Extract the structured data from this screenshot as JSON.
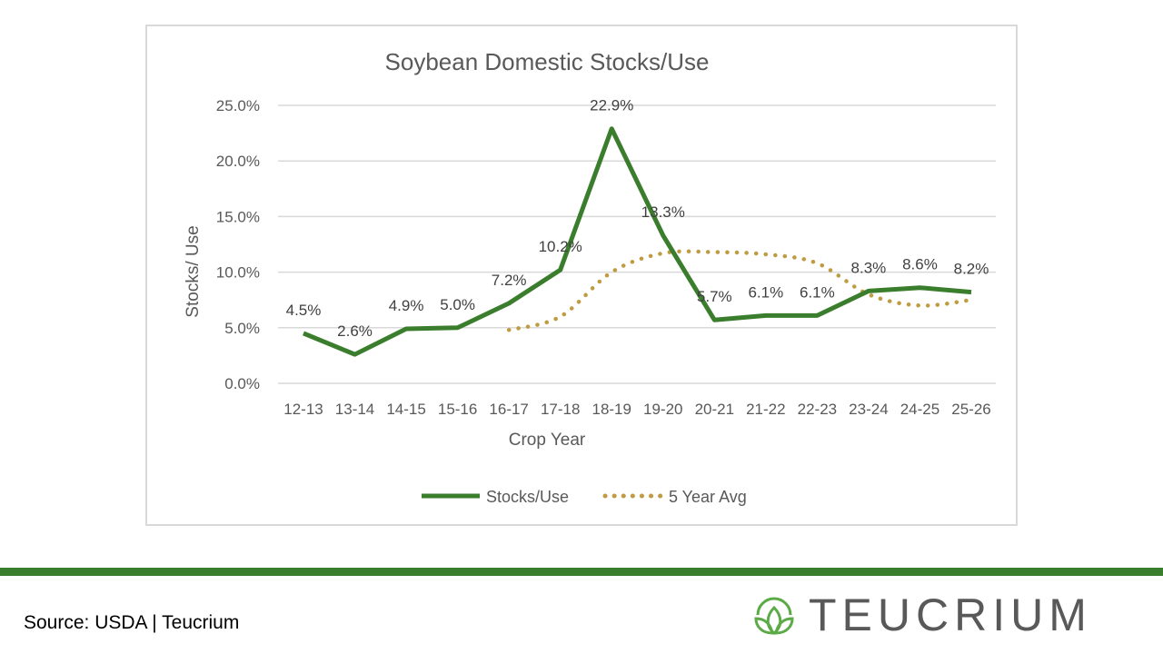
{
  "chart_data": {
    "type": "line",
    "title": "Soybean Domestic Stocks/Use",
    "xlabel": "Crop Year",
    "ylabel": "Stocks/ Use",
    "categories": [
      "12-13",
      "13-14",
      "14-15",
      "15-16",
      "16-17",
      "17-18",
      "18-19",
      "19-20",
      "20-21",
      "21-22",
      "22-23",
      "23-24",
      "24-25",
      "25-26"
    ],
    "ylim": [
      0,
      25
    ],
    "yticks": [
      "0.0%",
      "5.0%",
      "10.0%",
      "15.0%",
      "20.0%",
      "25.0%"
    ],
    "grid": true,
    "legend": "bottom",
    "series": [
      {
        "name": "Stocks/Use",
        "color": "#3a7d2c",
        "style": "solid",
        "values": [
          4.5,
          2.6,
          4.9,
          5.0,
          7.2,
          10.2,
          22.9,
          13.3,
          5.7,
          6.1,
          6.1,
          8.3,
          8.6,
          8.2
        ],
        "labels": [
          "4.5%",
          "2.6%",
          "4.9%",
          "5.0%",
          "7.2%",
          "10.2%",
          "22.9%",
          "13.3%",
          "5.7%",
          "6.1%",
          "6.1%",
          "8.3%",
          "8.6%",
          "8.2%"
        ]
      },
      {
        "name": "5 Year Avg",
        "color": "#bf9b42",
        "style": "dotted",
        "values": [
          null,
          null,
          null,
          null,
          4.8,
          6.0,
          10.0,
          11.7,
          11.8,
          11.6,
          10.8,
          8.0,
          7.0,
          7.5
        ]
      }
    ]
  },
  "footer": {
    "source": "Source: USDA | Teucrium",
    "logo_text": "TEUCRIUM",
    "bar_color": "#3a7d2c"
  }
}
